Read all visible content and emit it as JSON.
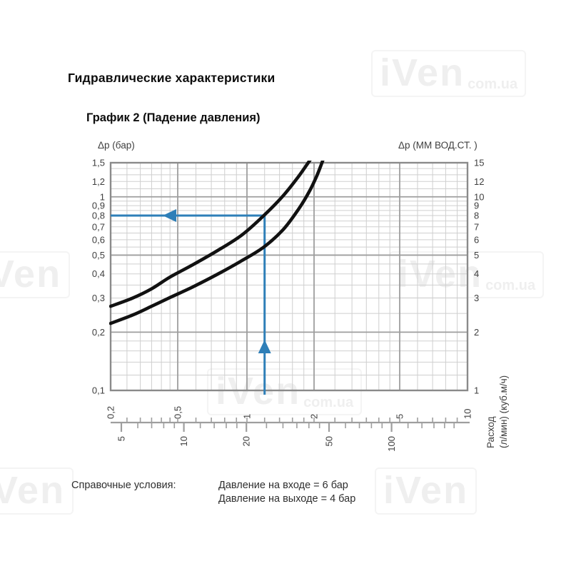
{
  "page": {
    "title": "Гидравлические характеристики",
    "chart_title": "График 2 (Падение давления)"
  },
  "footer": {
    "label": "Справочные условия:",
    "line1": "Давление на входе = 6 бар",
    "line2": "Давление на выходе = 4 бар"
  },
  "watermark": {
    "text": "iVen",
    "subtext": "com.ua"
  },
  "colors": {
    "accent_blue": "#2e7fb8",
    "curve_black": "#111111",
    "grid_minor": "#cfcfcf",
    "grid_major": "#9e9e9e",
    "plot_border": "#8a8a8a",
    "tick_text": "#3f3f3f"
  },
  "chart_data": {
    "type": "line",
    "title": "График 2 (Падение давления)",
    "x_axis": {
      "scale": "log",
      "range_m3h": [
        0.2,
        10
      ],
      "unit_primary": "куб.м/ч",
      "tick_labels_m3h": [
        "0,2",
        "0,5",
        "1",
        "2",
        "5",
        "10"
      ],
      "tick_values_m3h": [
        0.2,
        0.5,
        1,
        2,
        5,
        10
      ],
      "unit_secondary": "л/мин",
      "tick_labels_lmin": [
        "5",
        "10",
        "20",
        "50",
        "100"
      ],
      "tick_values_lmin": [
        5,
        10,
        20,
        50,
        100
      ],
      "minor_ticks_lmin": [
        6,
        7,
        8,
        9,
        12,
        14,
        16,
        18,
        25,
        30,
        35,
        40,
        45,
        60,
        70,
        80,
        90,
        120,
        140,
        160,
        180,
        200
      ],
      "title_line1": "Расход",
      "title_line2": "(л/мин) (куб.м/ч)"
    },
    "y_axis_left": {
      "label": "Δp (бар)",
      "scale": "log",
      "range": [
        0.1,
        1.5
      ],
      "tick_labels": [
        "1,5",
        "1,2",
        "1",
        "0,9",
        "0,8",
        "0,7",
        "0,6",
        "0,5",
        "0,4",
        "0,3",
        "0,2",
        "0,1"
      ],
      "tick_values": [
        1.5,
        1.2,
        1,
        0.9,
        0.8,
        0.7,
        0.6,
        0.5,
        0.4,
        0.3,
        0.2,
        0.1
      ]
    },
    "y_axis_right": {
      "label": "Δp (ММ ВОД.СТ. )",
      "scale": "log",
      "range": [
        1,
        15
      ],
      "tick_labels": [
        "15",
        "12",
        "10",
        "9",
        "8",
        "7",
        "6",
        "5",
        "4",
        "3",
        "2",
        "1"
      ],
      "tick_values": [
        15,
        12,
        10,
        9,
        8,
        7,
        6,
        5,
        4,
        3,
        2,
        1
      ]
    },
    "grid": {
      "x_minor": [
        0.25,
        0.3,
        0.35,
        0.4,
        0.45,
        0.6,
        0.7,
        0.8,
        0.9,
        1.2,
        1.4,
        1.6,
        1.8,
        2.5,
        3,
        3.5,
        4,
        4.5,
        6,
        7,
        8,
        9
      ],
      "x_major": [
        0.5,
        1,
        2,
        5
      ],
      "y_minor": [
        0.12,
        0.14,
        0.16,
        0.18,
        0.25,
        0.3,
        0.35,
        0.4,
        0.45,
        0.55,
        0.6,
        0.65,
        0.7,
        0.75,
        0.8,
        0.85,
        0.9,
        0.95,
        1.1,
        1.2,
        1.3,
        1.4
      ],
      "y_major": [
        0.2,
        0.5,
        1.0
      ]
    },
    "series": [
      {
        "name": "curve-upper",
        "points_m3h_bar": [
          [
            0.2,
            0.272
          ],
          [
            0.27,
            0.3
          ],
          [
            0.35,
            0.335
          ],
          [
            0.45,
            0.385
          ],
          [
            0.58,
            0.445
          ],
          [
            0.75,
            0.53
          ],
          [
            0.95,
            0.635
          ],
          [
            1.19,
            0.8
          ],
          [
            1.45,
            1.01
          ],
          [
            1.7,
            1.27
          ],
          [
            1.92,
            1.55
          ]
        ]
      },
      {
        "name": "curve-lower",
        "points_m3h_bar": [
          [
            0.2,
            0.222
          ],
          [
            0.27,
            0.245
          ],
          [
            0.35,
            0.272
          ],
          [
            0.45,
            0.302
          ],
          [
            0.58,
            0.342
          ],
          [
            0.75,
            0.4
          ],
          [
            0.95,
            0.468
          ],
          [
            1.19,
            0.55
          ],
          [
            1.45,
            0.675
          ],
          [
            1.7,
            0.86
          ],
          [
            1.9,
            1.06
          ],
          [
            2.07,
            1.3
          ],
          [
            2.2,
            1.55
          ]
        ]
      }
    ],
    "annotation": {
      "flow_m3h": 1.2,
      "flow_lmin": 20,
      "dp_bar": 0.8
    }
  }
}
